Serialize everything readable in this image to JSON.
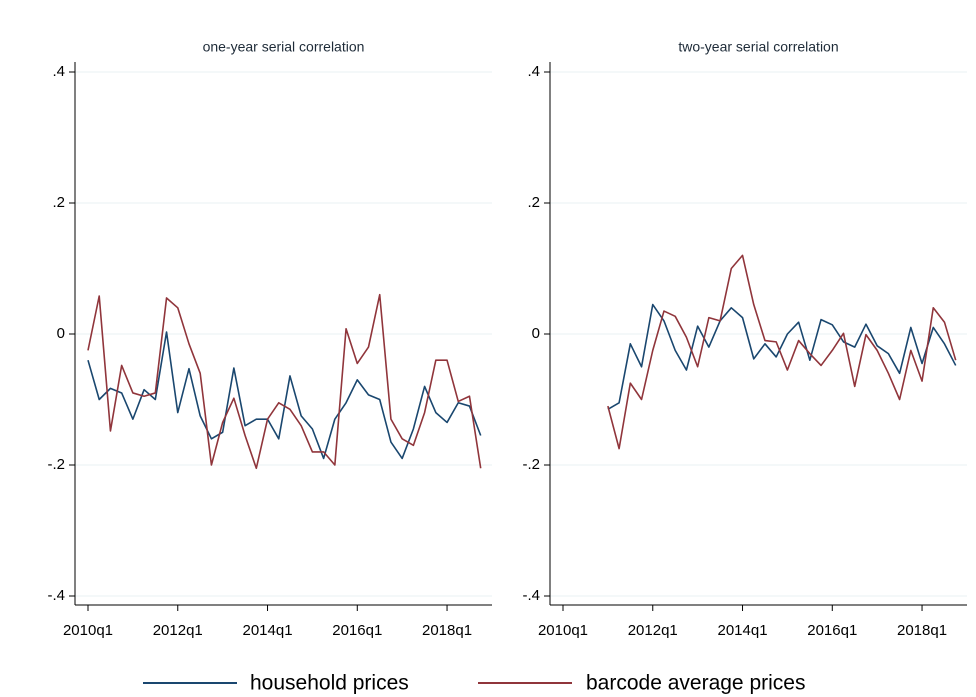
{
  "chart_data": [
    {
      "type": "line",
      "title": "one-year serial correlation",
      "categories": [
        "2010q1",
        null,
        null,
        null,
        null,
        null,
        null,
        null,
        "2012q1",
        null,
        null,
        null,
        null,
        null,
        null,
        null,
        "2014q1",
        null,
        null,
        null,
        null,
        null,
        null,
        null,
        "2016q1",
        null,
        null,
        null,
        null,
        null,
        null,
        null,
        "2018q1",
        null,
        null,
        null
      ],
      "ylim": [
        -0.4,
        0.4
      ],
      "yticks": [
        {
          "value": -0.4,
          "label": "-.4"
        },
        {
          "value": -0.2,
          "label": "-.2"
        },
        0,
        {
          "value": 0.2,
          "label": ".2"
        },
        {
          "value": 0.4,
          "label": ".4"
        }
      ],
      "grid": true,
      "series": [
        {
          "name": "household prices",
          "color": "#1a476f",
          "values": [
            -0.04,
            -0.1,
            -0.083,
            -0.09,
            -0.13,
            -0.085,
            -0.1,
            0.003,
            -0.12,
            -0.053,
            -0.125,
            -0.16,
            -0.15,
            -0.052,
            -0.14,
            -0.13,
            -0.13,
            -0.16,
            -0.064,
            -0.125,
            -0.145,
            -0.19,
            -0.13,
            -0.105,
            -0.07,
            -0.093,
            -0.1,
            -0.165,
            -0.19,
            -0.145,
            -0.08,
            -0.12,
            -0.135,
            -0.105,
            -0.11,
            -0.155
          ]
        },
        {
          "name": "barcode average prices",
          "color": "#90353b",
          "values": [
            -0.025,
            0.058,
            -0.148,
            -0.048,
            -0.09,
            -0.095,
            -0.09,
            0.055,
            0.04,
            -0.015,
            -0.06,
            -0.2,
            -0.135,
            -0.098,
            -0.155,
            -0.205,
            -0.13,
            -0.105,
            -0.115,
            -0.14,
            -0.18,
            -0.18,
            -0.2,
            0.008,
            -0.045,
            -0.02,
            0.06,
            -0.13,
            -0.16,
            -0.17,
            -0.12,
            -0.04,
            -0.04,
            -0.103,
            -0.095,
            -0.205
          ]
        }
      ]
    },
    {
      "type": "line",
      "title": "two-year serial correlation",
      "categories": [
        "2010q1",
        null,
        null,
        null,
        null,
        null,
        null,
        null,
        "2012q1",
        null,
        null,
        null,
        null,
        null,
        null,
        null,
        "2014q1",
        null,
        null,
        null,
        null,
        null,
        null,
        null,
        "2016q1",
        null,
        null,
        null,
        null,
        null,
        null,
        null,
        "2018q1",
        null,
        null,
        null
      ],
      "ylim": [
        -0.4,
        0.4
      ],
      "yticks": [
        {
          "value": -0.4,
          "label": "-.4"
        },
        {
          "value": -0.2,
          "label": "-.2"
        },
        0,
        {
          "value": 0.2,
          "label": ".2"
        },
        {
          "value": 0.4,
          "label": ".4"
        }
      ],
      "grid": true,
      "series": [
        {
          "name": "household prices",
          "color": "#1a476f",
          "values": [
            null,
            null,
            null,
            null,
            -0.115,
            -0.105,
            -0.015,
            -0.05,
            0.045,
            0.02,
            -0.025,
            -0.055,
            0.012,
            -0.02,
            0.02,
            0.04,
            0.025,
            -0.038,
            -0.015,
            -0.035,
            0,
            0.018,
            -0.04,
            0.022,
            0.014,
            -0.012,
            -0.02,
            0.015,
            -0.018,
            -0.03,
            -0.06,
            0.01,
            -0.045,
            0.01,
            -0.015,
            -0.048
          ]
        },
        {
          "name": "barcode average prices",
          "color": "#90353b",
          "values": [
            null,
            null,
            null,
            null,
            -0.11,
            -0.175,
            -0.075,
            -0.1,
            -0.025,
            0.035,
            0.027,
            -0.005,
            -0.05,
            0.025,
            0.02,
            0.1,
            0.12,
            0.045,
            -0.01,
            -0.012,
            -0.055,
            -0.01,
            -0.03,
            -0.048,
            -0.025,
            0.001,
            -0.08,
            -0.001,
            -0.025,
            -0.06,
            -0.1,
            -0.025,
            -0.072,
            0.04,
            0.018,
            -0.04
          ]
        }
      ]
    }
  ]
}
